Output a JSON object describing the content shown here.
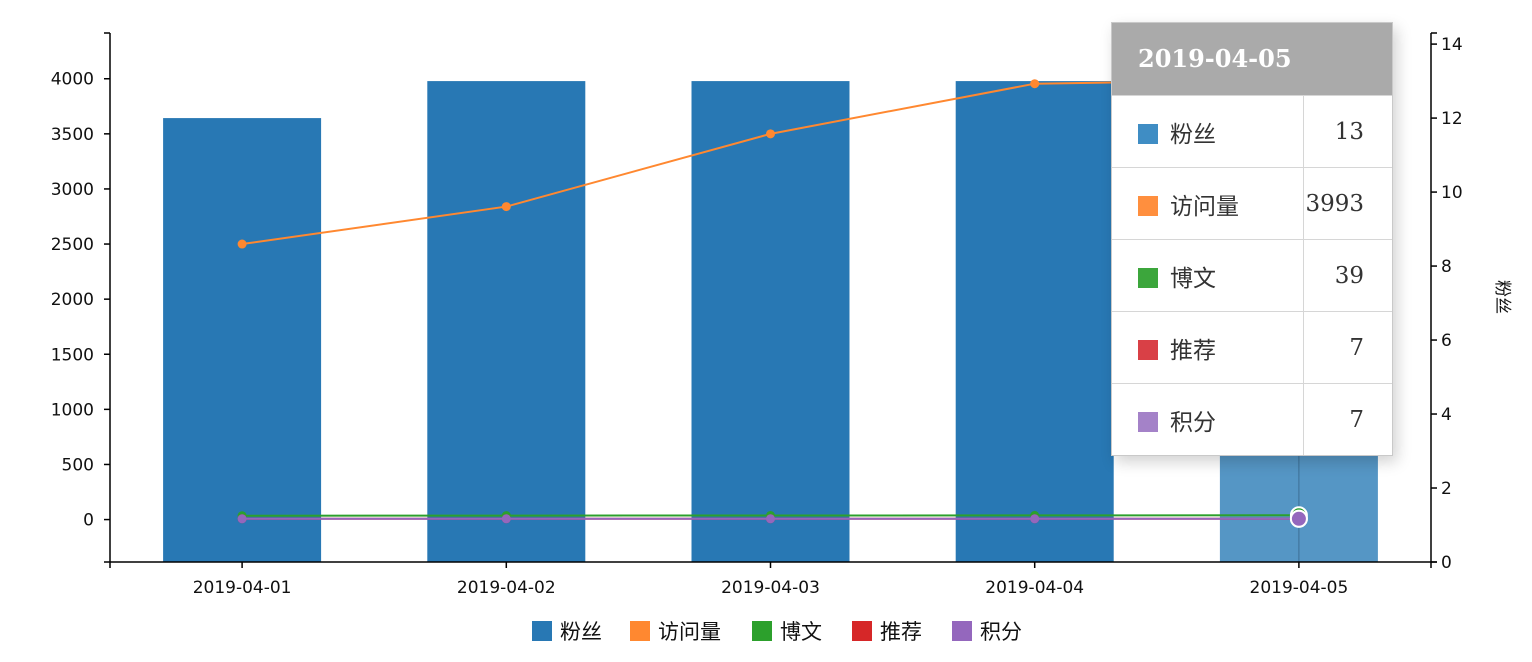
{
  "chart_data": {
    "type": "bar",
    "categories": [
      "2019-04-01",
      "2019-04-02",
      "2019-04-03",
      "2019-04-04",
      "2019-04-05"
    ],
    "series": [
      {
        "name": "粉丝",
        "type": "bar",
        "axis": "right",
        "color": "#2878b4",
        "values": [
          12,
          13,
          13,
          13,
          13
        ]
      },
      {
        "name": "访问量",
        "type": "line",
        "axis": "left",
        "color": "#ff8830",
        "values": [
          2500,
          2840,
          3500,
          3955,
          3993
        ]
      },
      {
        "name": "博文",
        "type": "line",
        "axis": "left",
        "color": "#2ca02c",
        "values": [
          35,
          36,
          37,
          38,
          39
        ]
      },
      {
        "name": "推荐",
        "type": "line",
        "axis": "left",
        "color": "#d62728",
        "values": [
          7,
          7,
          7,
          7,
          7
        ]
      },
      {
        "name": "积分",
        "type": "line",
        "axis": "left",
        "color": "#9467bd",
        "values": [
          7,
          7,
          7,
          7,
          7
        ]
      }
    ],
    "left_axis": {
      "ticks": [
        0,
        500,
        1000,
        1500,
        2000,
        2500,
        3000,
        3500,
        4000
      ],
      "range": [
        -385,
        4415
      ]
    },
    "right_axis": {
      "label": "粉丝",
      "ticks": [
        0,
        2,
        4,
        6,
        8,
        10,
        12,
        14
      ],
      "range": [
        0,
        14.3
      ]
    },
    "legend": {
      "position": "bottom",
      "items": [
        "粉丝",
        "访问量",
        "博文",
        "推荐",
        "积分"
      ]
    },
    "highlighted_category": "2019-04-05"
  },
  "tooltip": {
    "title": "2019-04-05",
    "rows": [
      {
        "name": "粉丝",
        "value": "13",
        "color": "#3f8dc4"
      },
      {
        "name": "访问量",
        "value": "3993",
        "color": "#ff8f3e"
      },
      {
        "name": "博文",
        "value": "39",
        "color": "#3ca63c"
      },
      {
        "name": "推荐",
        "value": "7",
        "color": "#d94046"
      },
      {
        "name": "积分",
        "value": "7",
        "color": "#a482c8"
      }
    ]
  }
}
